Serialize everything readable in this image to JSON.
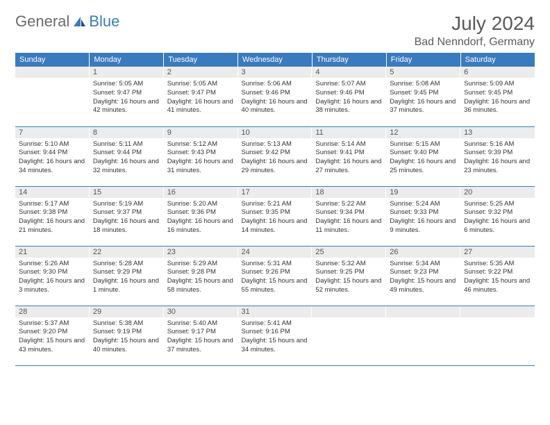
{
  "brand": {
    "part1": "General",
    "part2": "Blue"
  },
  "title": "July 2024",
  "location": "Bad Nenndorf, Germany",
  "colors": {
    "header_bg": "#3a7bbf",
    "header_text": "#ffffff",
    "daynum_bg": "#ececec",
    "text": "#333333",
    "rule": "#3a7bbf"
  },
  "weekdays": [
    "Sunday",
    "Monday",
    "Tuesday",
    "Wednesday",
    "Thursday",
    "Friday",
    "Saturday"
  ],
  "weeks": [
    [
      {
        "n": "",
        "sr": "",
        "ss": "",
        "dl": ""
      },
      {
        "n": "1",
        "sr": "5:05 AM",
        "ss": "9:47 PM",
        "dl": "16 hours and 42 minutes."
      },
      {
        "n": "2",
        "sr": "5:05 AM",
        "ss": "9:47 PM",
        "dl": "16 hours and 41 minutes."
      },
      {
        "n": "3",
        "sr": "5:06 AM",
        "ss": "9:46 PM",
        "dl": "16 hours and 40 minutes."
      },
      {
        "n": "4",
        "sr": "5:07 AM",
        "ss": "9:46 PM",
        "dl": "16 hours and 38 minutes."
      },
      {
        "n": "5",
        "sr": "5:08 AM",
        "ss": "9:45 PM",
        "dl": "16 hours and 37 minutes."
      },
      {
        "n": "6",
        "sr": "5:09 AM",
        "ss": "9:45 PM",
        "dl": "16 hours and 36 minutes."
      }
    ],
    [
      {
        "n": "7",
        "sr": "5:10 AM",
        "ss": "9:44 PM",
        "dl": "16 hours and 34 minutes."
      },
      {
        "n": "8",
        "sr": "5:11 AM",
        "ss": "9:44 PM",
        "dl": "16 hours and 32 minutes."
      },
      {
        "n": "9",
        "sr": "5:12 AM",
        "ss": "9:43 PM",
        "dl": "16 hours and 31 minutes."
      },
      {
        "n": "10",
        "sr": "5:13 AM",
        "ss": "9:42 PM",
        "dl": "16 hours and 29 minutes."
      },
      {
        "n": "11",
        "sr": "5:14 AM",
        "ss": "9:41 PM",
        "dl": "16 hours and 27 minutes."
      },
      {
        "n": "12",
        "sr": "5:15 AM",
        "ss": "9:40 PM",
        "dl": "16 hours and 25 minutes."
      },
      {
        "n": "13",
        "sr": "5:16 AM",
        "ss": "9:39 PM",
        "dl": "16 hours and 23 minutes."
      }
    ],
    [
      {
        "n": "14",
        "sr": "5:17 AM",
        "ss": "9:38 PM",
        "dl": "16 hours and 21 minutes."
      },
      {
        "n": "15",
        "sr": "5:19 AM",
        "ss": "9:37 PM",
        "dl": "16 hours and 18 minutes."
      },
      {
        "n": "16",
        "sr": "5:20 AM",
        "ss": "9:36 PM",
        "dl": "16 hours and 16 minutes."
      },
      {
        "n": "17",
        "sr": "5:21 AM",
        "ss": "9:35 PM",
        "dl": "16 hours and 14 minutes."
      },
      {
        "n": "18",
        "sr": "5:22 AM",
        "ss": "9:34 PM",
        "dl": "16 hours and 11 minutes."
      },
      {
        "n": "19",
        "sr": "5:24 AM",
        "ss": "9:33 PM",
        "dl": "16 hours and 9 minutes."
      },
      {
        "n": "20",
        "sr": "5:25 AM",
        "ss": "9:32 PM",
        "dl": "16 hours and 6 minutes."
      }
    ],
    [
      {
        "n": "21",
        "sr": "5:26 AM",
        "ss": "9:30 PM",
        "dl": "16 hours and 3 minutes."
      },
      {
        "n": "22",
        "sr": "5:28 AM",
        "ss": "9:29 PM",
        "dl": "16 hours and 1 minute."
      },
      {
        "n": "23",
        "sr": "5:29 AM",
        "ss": "9:28 PM",
        "dl": "15 hours and 58 minutes."
      },
      {
        "n": "24",
        "sr": "5:31 AM",
        "ss": "9:26 PM",
        "dl": "15 hours and 55 minutes."
      },
      {
        "n": "25",
        "sr": "5:32 AM",
        "ss": "9:25 PM",
        "dl": "15 hours and 52 minutes."
      },
      {
        "n": "26",
        "sr": "5:34 AM",
        "ss": "9:23 PM",
        "dl": "15 hours and 49 minutes."
      },
      {
        "n": "27",
        "sr": "5:35 AM",
        "ss": "9:22 PM",
        "dl": "15 hours and 46 minutes."
      }
    ],
    [
      {
        "n": "28",
        "sr": "5:37 AM",
        "ss": "9:20 PM",
        "dl": "15 hours and 43 minutes."
      },
      {
        "n": "29",
        "sr": "5:38 AM",
        "ss": "9:19 PM",
        "dl": "15 hours and 40 minutes."
      },
      {
        "n": "30",
        "sr": "5:40 AM",
        "ss": "9:17 PM",
        "dl": "15 hours and 37 minutes."
      },
      {
        "n": "31",
        "sr": "5:41 AM",
        "ss": "9:16 PM",
        "dl": "15 hours and 34 minutes."
      },
      {
        "n": "",
        "sr": "",
        "ss": "",
        "dl": ""
      },
      {
        "n": "",
        "sr": "",
        "ss": "",
        "dl": ""
      },
      {
        "n": "",
        "sr": "",
        "ss": "",
        "dl": ""
      }
    ]
  ],
  "labels": {
    "sunrise": "Sunrise:",
    "sunset": "Sunset:",
    "daylight": "Daylight:"
  }
}
